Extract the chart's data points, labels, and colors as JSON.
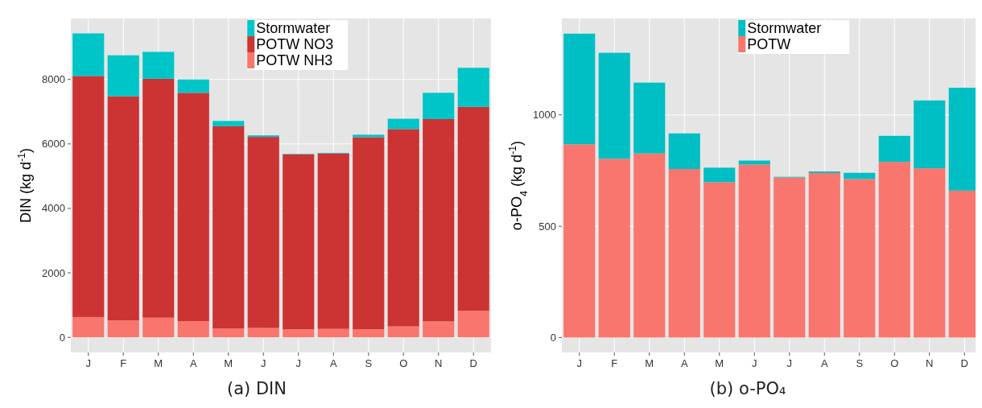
{
  "chart_data": [
    {
      "type": "bar",
      "title": "(a) DIN",
      "ylabel": "DIN (kg d$^{-1}$)",
      "categories": [
        "J",
        "F",
        "M",
        "A",
        "M",
        "J",
        "J",
        "A",
        "S",
        "O",
        "N",
        "D"
      ],
      "stacked": true,
      "grid": true,
      "legend": "top",
      "ylim": [
        -470,
        9890
      ],
      "yticks": [
        0,
        2000,
        4000,
        6000,
        8000
      ],
      "series": [
        {
          "name": "POTW NH3",
          "color": "#f8766d",
          "values": [
            630,
            524,
            611,
            504,
            272,
            291,
            252,
            262,
            252,
            339,
            495,
            824
          ]
        },
        {
          "name": "POTW NO3",
          "color": "#cc3333",
          "values": [
            7478,
            6954,
            7410,
            7081,
            6275,
            5926,
            5422,
            5441,
            5956,
            6121,
            6275,
            6324
          ]
        },
        {
          "name": "Stormwater",
          "color": "#00c5c8",
          "values": [
            1320,
            1271,
            834,
            415,
            165,
            49,
            15,
            20,
            77,
            320,
            815,
            1213
          ]
        }
      ]
    },
    {
      "type": "bar",
      "title": "(b) o-PO₄",
      "ylabel": "o-PO$_{4}$ (kg d$^{-1}$)",
      "categories": [
        "J",
        "F",
        "M",
        "A",
        "M",
        "J",
        "J",
        "A",
        "S",
        "O",
        "N",
        "D"
      ],
      "stacked": true,
      "grid": true,
      "legend": "top",
      "ylim": [
        -67,
        1433
      ],
      "yticks": [
        0,
        500,
        1000
      ],
      "series": [
        {
          "name": "POTW",
          "color": "#f8766d",
          "values": [
            868,
            803,
            827,
            757,
            698,
            777,
            719,
            739,
            712,
            789,
            760,
            660
          ]
        },
        {
          "name": "Stormwater",
          "color": "#00bfc4",
          "values": [
            497,
            476,
            318,
            160,
            65,
            18,
            3,
            7,
            28,
            117,
            305,
            462
          ]
        }
      ]
    }
  ]
}
